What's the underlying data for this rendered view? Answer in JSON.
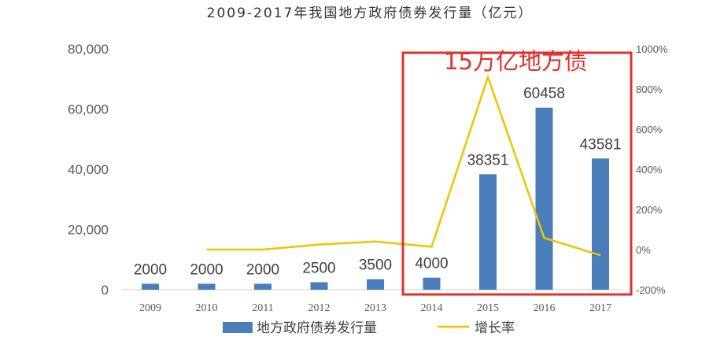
{
  "chart_data": {
    "type": "bar",
    "title": "2009-2017年我国地方政府债券发行量（亿元）",
    "categories": [
      "2009",
      "2010",
      "2011",
      "2012",
      "2013",
      "2014",
      "2015",
      "2016",
      "2017"
    ],
    "series": [
      {
        "name": "地方政府债券发行量",
        "type": "bar",
        "axis": "left",
        "color": "#4a7ebb",
        "values": [
          2000,
          2000,
          2000,
          2500,
          3500,
          4000,
          38351,
          60458,
          43581
        ],
        "labels": [
          "2000",
          "2000",
          "2000",
          "2500",
          "3500",
          "4000",
          "38351",
          "60458",
          "43581"
        ]
      },
      {
        "name": "增长率",
        "type": "line",
        "axis": "right",
        "color": "#f2c200",
        "unit": "%",
        "values": [
          null,
          0,
          0,
          25,
          40,
          14,
          859,
          58,
          -28
        ]
      }
    ],
    "y_left": {
      "min": 0,
      "max": 80000,
      "ticks": [
        "0",
        "20,000",
        "40,000",
        "60,000",
        "80,000"
      ]
    },
    "y_right": {
      "min": -200,
      "max": 1000,
      "ticks": [
        "-200%",
        "0%",
        "200%",
        "400%",
        "600%",
        "800%",
        "1000%"
      ]
    },
    "grid": false,
    "legend_position": "bottom",
    "annotation": {
      "text": "15万亿地方债",
      "color": "#e0312a"
    }
  }
}
